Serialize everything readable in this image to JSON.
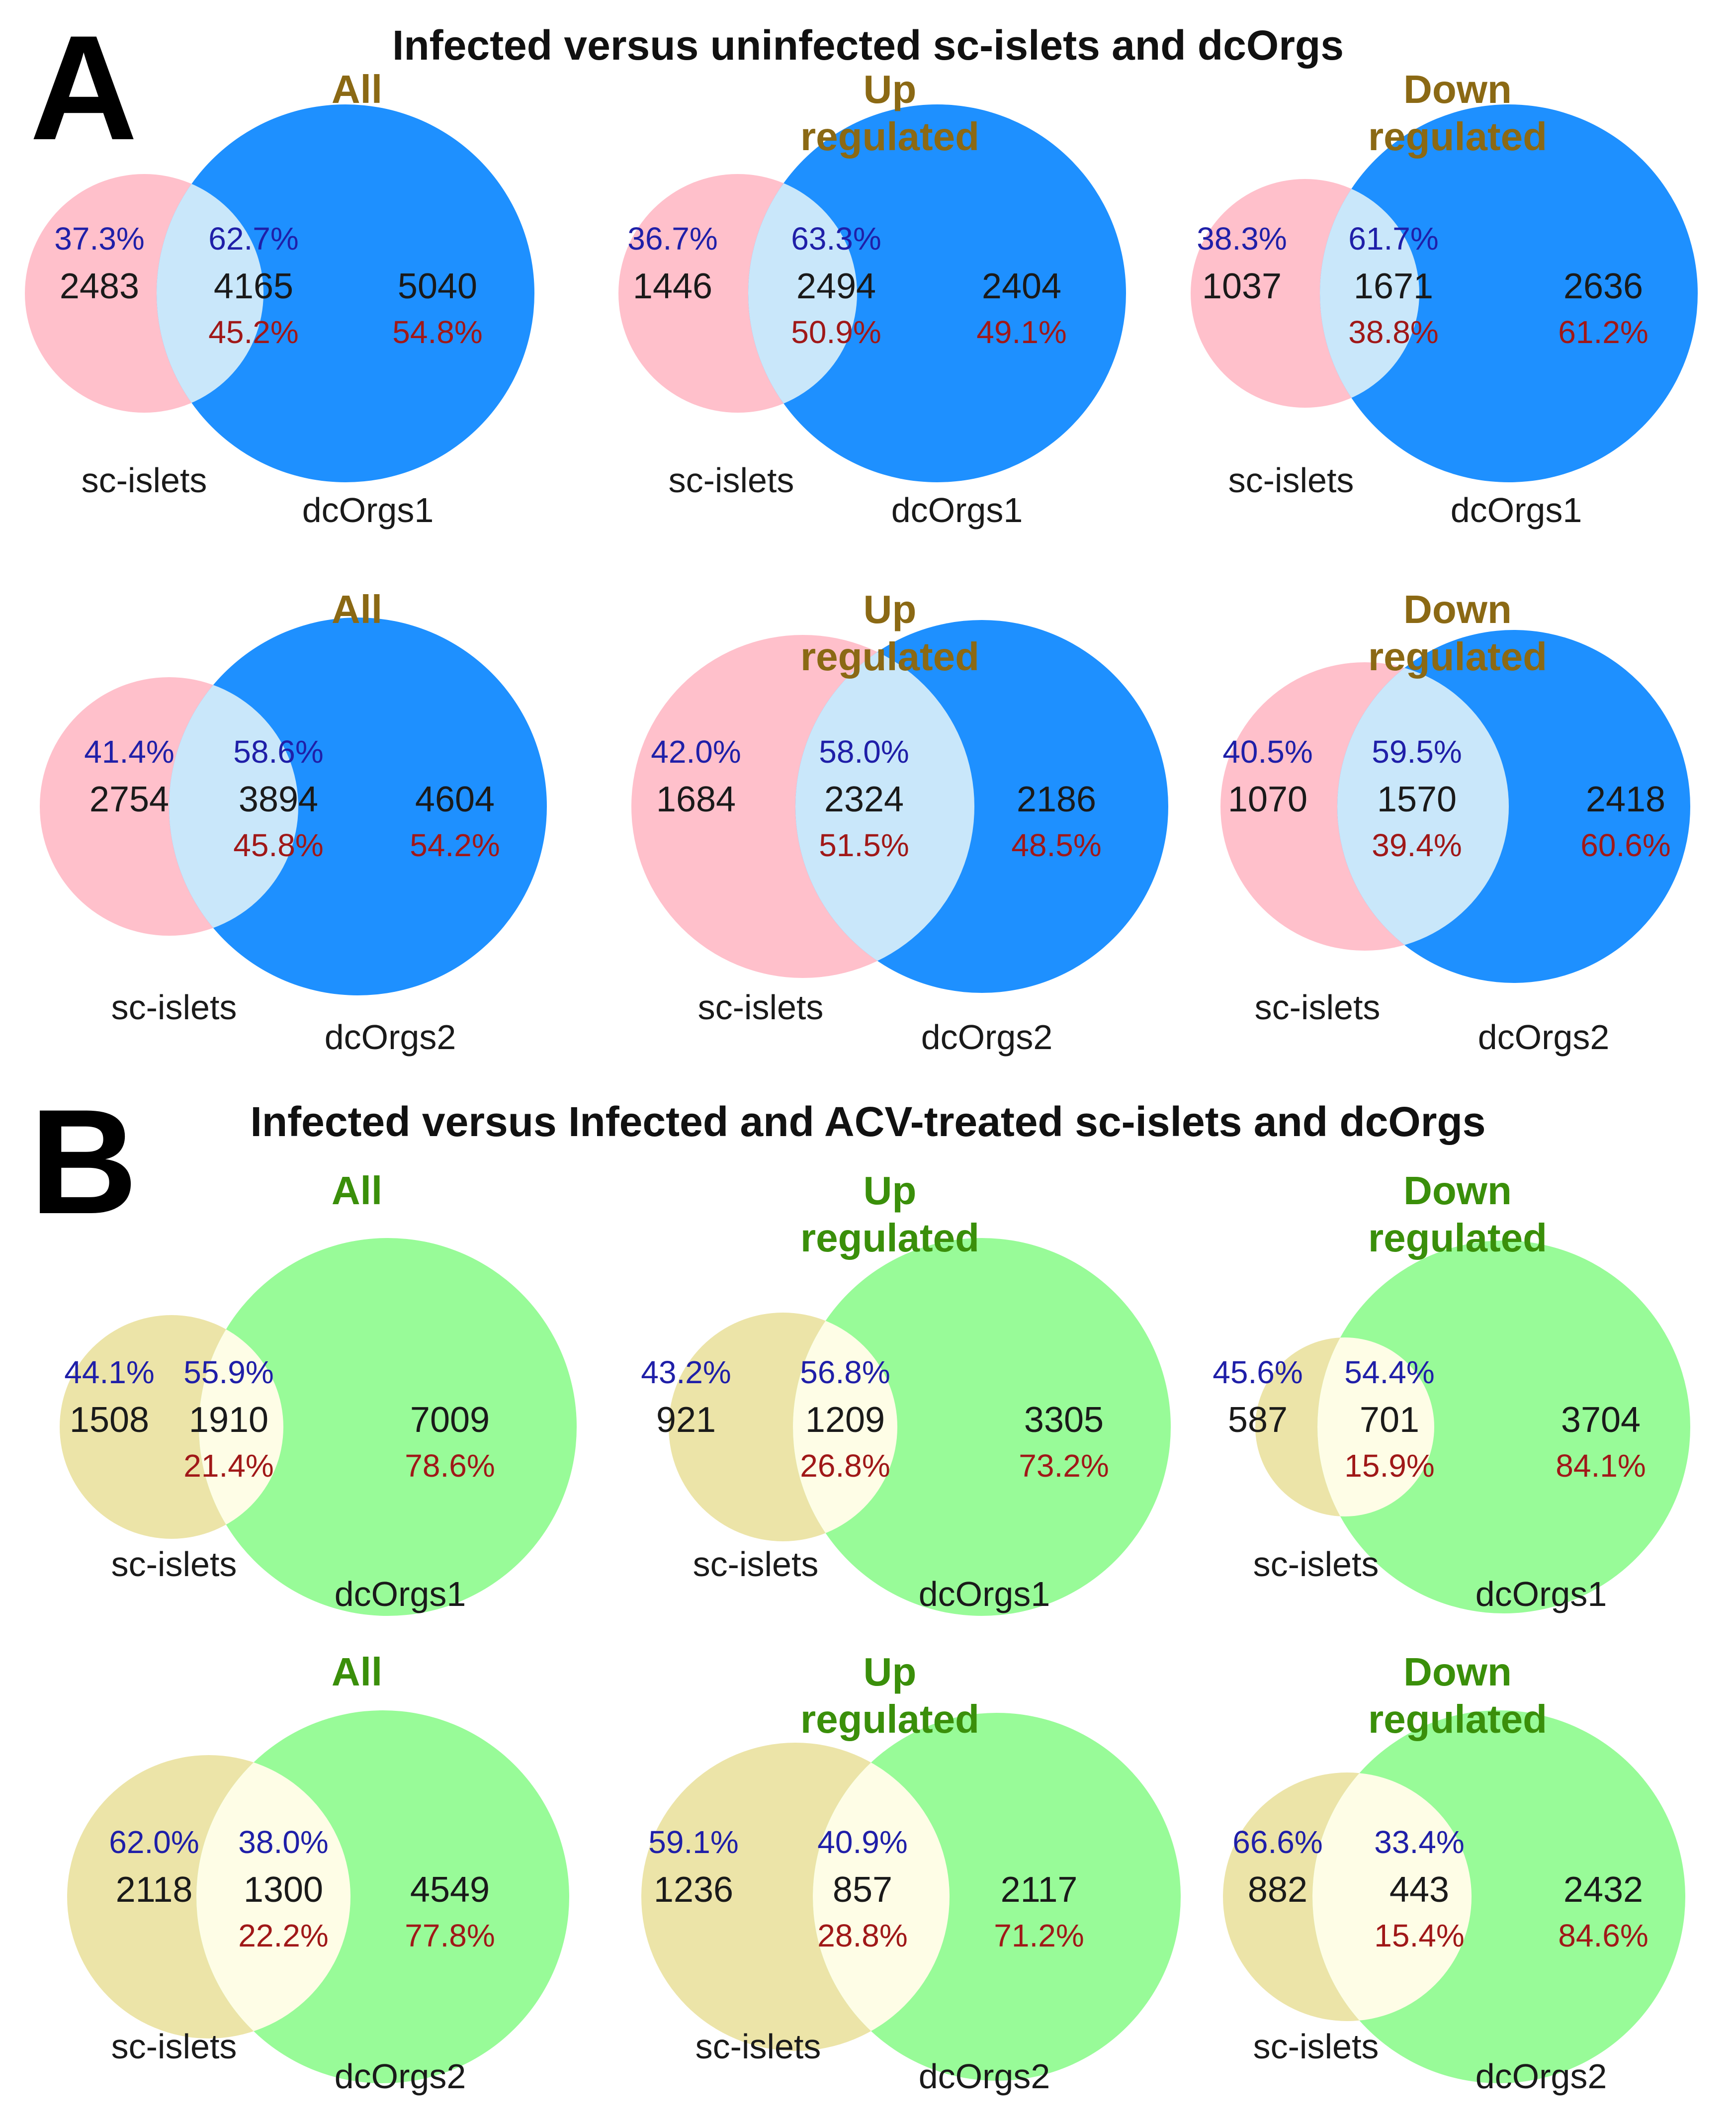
{
  "colors": {
    "a_left": "#ffc0cb",
    "a_right": "#1e90ff",
    "a_overlap": "#c9e7fa",
    "a_title": "#8b6914",
    "b_left": "#ece4a8",
    "b_right": "#98fb98",
    "b_overlap": "#fefde6",
    "b_title": "#3a8f0a",
    "pct_top": "#1f1fa8",
    "pct_bottom": "#a01818"
  },
  "sections": [
    {
      "letter": "A",
      "title": "Infected versus uninfected sc-islets and dcOrgs",
      "theme": "a",
      "diagrams": [
        {
          "title": [
            "All"
          ],
          "left_label": "sc-islets",
          "right_label": "dcOrgs1",
          "left_count": "2483",
          "overlap_count": "4165",
          "right_count": "5040",
          "left_pct": "37.3%",
          "overlap_pct_left": "62.7%",
          "overlap_pct_right": "45.2%",
          "right_pct": "54.8%"
        },
        {
          "title": [
            "Up",
            "regulated"
          ],
          "left_label": "sc-islets",
          "right_label": "dcOrgs1",
          "left_count": "1446",
          "overlap_count": "2494",
          "right_count": "2404",
          "left_pct": "36.7%",
          "overlap_pct_left": "63.3%",
          "overlap_pct_right": "50.9%",
          "right_pct": "49.1%"
        },
        {
          "title": [
            "Down",
            "regulated"
          ],
          "left_label": "sc-islets",
          "right_label": "dcOrgs1",
          "left_count": "1037",
          "overlap_count": "1671",
          "right_count": "2636",
          "left_pct": "38.3%",
          "overlap_pct_left": "61.7%",
          "overlap_pct_right": "38.8%",
          "right_pct": "61.2%"
        },
        {
          "title": [
            "All"
          ],
          "left_label": "sc-islets",
          "right_label": "dcOrgs2",
          "left_count": "2754",
          "overlap_count": "3894",
          "right_count": "4604",
          "left_pct": "41.4%",
          "overlap_pct_left": "58.6%",
          "overlap_pct_right": "45.8%",
          "right_pct": "54.2%"
        },
        {
          "title": [
            "Up",
            "regulated"
          ],
          "left_label": "sc-islets",
          "right_label": "dcOrgs2",
          "left_count": "1684",
          "overlap_count": "2324",
          "right_count": "2186",
          "left_pct": "42.0%",
          "overlap_pct_left": "58.0%",
          "overlap_pct_right": "51.5%",
          "right_pct": "48.5%"
        },
        {
          "title": [
            "Down",
            "regulated"
          ],
          "left_label": "sc-islets",
          "right_label": "dcOrgs2",
          "left_count": "1070",
          "overlap_count": "1570",
          "right_count": "2418",
          "left_pct": "40.5%",
          "overlap_pct_left": "59.5%",
          "overlap_pct_right": "39.4%",
          "right_pct": "60.6%"
        }
      ]
    },
    {
      "letter": "B",
      "title": "Infected versus Infected and ACV-treated sc-islets and dcOrgs",
      "theme": "b",
      "diagrams": [
        {
          "title": [
            "All"
          ],
          "left_label": "sc-islets",
          "right_label": "dcOrgs1",
          "left_count": "1508",
          "overlap_count": "1910",
          "right_count": "7009",
          "left_pct": "44.1%",
          "overlap_pct_left": "55.9%",
          "overlap_pct_right": "21.4%",
          "right_pct": "78.6%"
        },
        {
          "title": [
            "Up",
            "regulated"
          ],
          "left_label": "sc-islets",
          "right_label": "dcOrgs1",
          "left_count": "921",
          "overlap_count": "1209",
          "right_count": "3305",
          "left_pct": "43.2%",
          "overlap_pct_left": "56.8%",
          "overlap_pct_right": "26.8%",
          "right_pct": "73.2%"
        },
        {
          "title": [
            "Down",
            "regulated"
          ],
          "left_label": "sc-islets",
          "right_label": "dcOrgs1",
          "left_count": "587",
          "overlap_count": "701",
          "right_count": "3704",
          "left_pct": "45.6%",
          "overlap_pct_left": "54.4%",
          "overlap_pct_right": "15.9%",
          "right_pct": "84.1%"
        },
        {
          "title": [
            "All"
          ],
          "left_label": "sc-islets",
          "right_label": "dcOrgs2",
          "left_count": "2118",
          "overlap_count": "1300",
          "right_count": "4549",
          "left_pct": "62.0%",
          "overlap_pct_left": "38.0%",
          "overlap_pct_right": "22.2%",
          "right_pct": "77.8%"
        },
        {
          "title": [
            "Up",
            "regulated"
          ],
          "left_label": "sc-islets",
          "right_label": "dcOrgs2",
          "left_count": "1236",
          "overlap_count": "857",
          "right_count": "2117",
          "left_pct": "59.1%",
          "overlap_pct_left": "40.9%",
          "overlap_pct_right": "28.8%",
          "right_pct": "71.2%"
        },
        {
          "title": [
            "Down",
            "regulated"
          ],
          "left_label": "sc-islets",
          "right_label": "dcOrgs2",
          "left_count": "882",
          "overlap_count": "443",
          "right_count": "2432",
          "left_pct": "66.6%",
          "overlap_pct_left": "33.4%",
          "overlap_pct_right": "15.4%",
          "right_pct": "84.6%"
        }
      ]
    }
  ]
}
